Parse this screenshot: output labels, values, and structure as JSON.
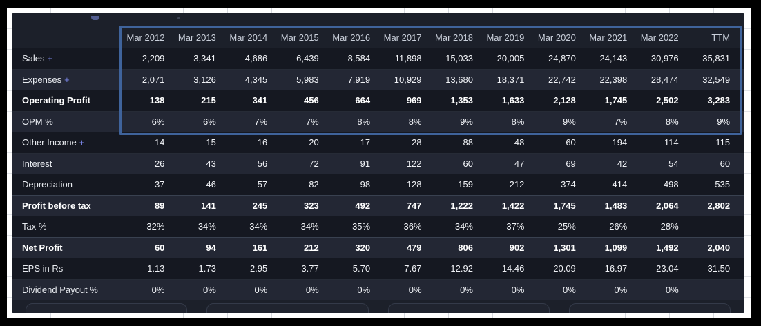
{
  "table": {
    "columns": [
      "Mar 2012",
      "Mar 2013",
      "Mar 2014",
      "Mar 2015",
      "Mar 2016",
      "Mar 2017",
      "Mar 2018",
      "Mar 2019",
      "Mar 2020",
      "Mar 2021",
      "Mar 2022",
      "TTM"
    ],
    "rows": [
      {
        "label": "Sales",
        "expandable": true,
        "bold": false,
        "values": [
          "2,209",
          "3,341",
          "4,686",
          "6,439",
          "8,584",
          "11,898",
          "15,033",
          "20,005",
          "24,870",
          "24,143",
          "30,976",
          "35,831"
        ]
      },
      {
        "label": "Expenses",
        "expandable": true,
        "bold": false,
        "values": [
          "2,071",
          "3,126",
          "4,345",
          "5,983",
          "7,919",
          "10,929",
          "13,680",
          "18,371",
          "22,742",
          "22,398",
          "28,474",
          "32,549"
        ]
      },
      {
        "label": "Operating Profit",
        "expandable": false,
        "bold": true,
        "values": [
          "138",
          "215",
          "341",
          "456",
          "664",
          "969",
          "1,353",
          "1,633",
          "2,128",
          "1,745",
          "2,502",
          "3,283"
        ]
      },
      {
        "label": "OPM %",
        "expandable": false,
        "bold": false,
        "values": [
          "6%",
          "6%",
          "7%",
          "7%",
          "8%",
          "8%",
          "9%",
          "8%",
          "9%",
          "7%",
          "8%",
          "9%"
        ]
      },
      {
        "label": "Other Income",
        "expandable": true,
        "bold": false,
        "values": [
          "14",
          "15",
          "16",
          "20",
          "17",
          "28",
          "88",
          "48",
          "60",
          "194",
          "114",
          "115"
        ]
      },
      {
        "label": "Interest",
        "expandable": false,
        "bold": false,
        "values": [
          "26",
          "43",
          "56",
          "72",
          "91",
          "122",
          "60",
          "47",
          "69",
          "42",
          "54",
          "60"
        ]
      },
      {
        "label": "Depreciation",
        "expandable": false,
        "bold": false,
        "values": [
          "37",
          "46",
          "57",
          "82",
          "98",
          "128",
          "159",
          "212",
          "374",
          "414",
          "498",
          "535"
        ]
      },
      {
        "label": "Profit before tax",
        "expandable": false,
        "bold": true,
        "values": [
          "89",
          "141",
          "245",
          "323",
          "492",
          "747",
          "1,222",
          "1,422",
          "1,745",
          "1,483",
          "2,064",
          "2,802"
        ]
      },
      {
        "label": "Tax %",
        "expandable": false,
        "bold": false,
        "values": [
          "32%",
          "34%",
          "34%",
          "34%",
          "35%",
          "36%",
          "34%",
          "37%",
          "25%",
          "26%",
          "28%",
          ""
        ]
      },
      {
        "label": "Net Profit",
        "expandable": false,
        "bold": true,
        "values": [
          "60",
          "94",
          "161",
          "212",
          "320",
          "479",
          "806",
          "902",
          "1,301",
          "1,099",
          "1,492",
          "2,040"
        ]
      },
      {
        "label": "EPS in Rs",
        "expandable": false,
        "bold": false,
        "values": [
          "1.13",
          "1.73",
          "2.95",
          "3.77",
          "5.70",
          "7.67",
          "12.92",
          "14.46",
          "20.09",
          "16.97",
          "23.04",
          "31.50"
        ]
      },
      {
        "label": "Dividend Payout %",
        "expandable": false,
        "bold": false,
        "values": [
          "0%",
          "0%",
          "0%",
          "0%",
          "0%",
          "0%",
          "0%",
          "0%",
          "0%",
          "0%",
          "0%",
          ""
        ]
      }
    ],
    "expand_icon": "+"
  },
  "highlight": {
    "border_color": "#3f639b"
  },
  "footer": {
    "card_count": 4
  },
  "colors": {
    "panel_bg": "#1c202a",
    "row_dark": "#151821",
    "row_light": "#232734",
    "plus_accent": "#7a86e8",
    "header_text": "#c9cfda",
    "value_text": "#f0f2f6"
  }
}
